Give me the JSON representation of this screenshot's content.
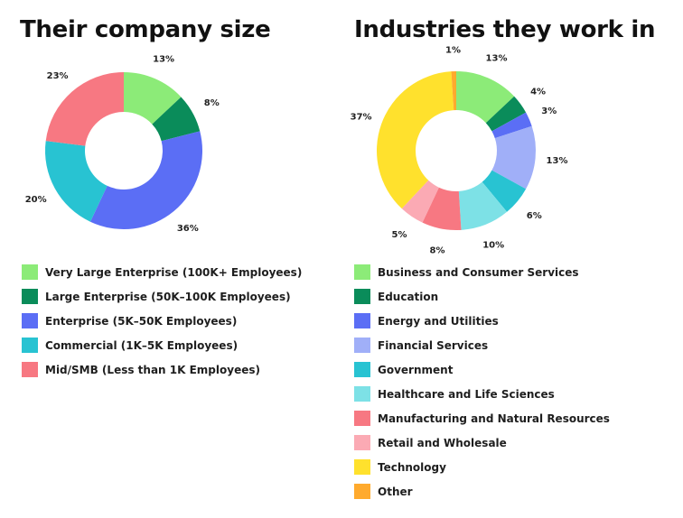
{
  "chart_data": [
    {
      "type": "pie",
      "title": "Their company size",
      "categories": [
        "Very Large Enterprise (100K+ Employees)",
        "Large Enterprise (50K–100K Employees)",
        "Enterprise (5K–50K Employees)",
        "Commercial (1K–5K Employees)",
        "Mid/SMB (Less than 1K Employees)"
      ],
      "values": [
        13,
        8,
        36,
        20,
        23
      ],
      "data_labels": [
        "13%",
        "8%",
        "36%",
        "20%",
        "23%"
      ],
      "colors": [
        "#8ceb78",
        "#0a8c5a",
        "#5b6ef5",
        "#28c3d2",
        "#f77882"
      ],
      "donut": true,
      "legend_position": "bottom"
    },
    {
      "type": "pie",
      "title": "Industries they work in",
      "categories": [
        "Business and Consumer Services",
        "Education",
        "Energy and Utilities",
        "Financial Services",
        "Government",
        "Healthcare and Life Sciences",
        "Manufacturing and Natural Resources",
        "Retail and Wholesale",
        "Technology",
        "Other"
      ],
      "values": [
        13,
        4,
        3,
        13,
        6,
        10,
        8,
        5,
        37,
        1
      ],
      "data_labels": [
        "13%",
        "4%",
        "3%",
        "13%",
        "6%",
        "10%",
        "8%",
        "5%",
        "37%",
        "1%"
      ],
      "colors": [
        "#8ceb78",
        "#0a8c5a",
        "#5b6ef5",
        "#a0aff8",
        "#28c3d2",
        "#7de1e6",
        "#f77882",
        "#fbaab4",
        "#ffe12d",
        "#ffaa2d"
      ],
      "donut": true,
      "legend_position": "bottom"
    }
  ]
}
